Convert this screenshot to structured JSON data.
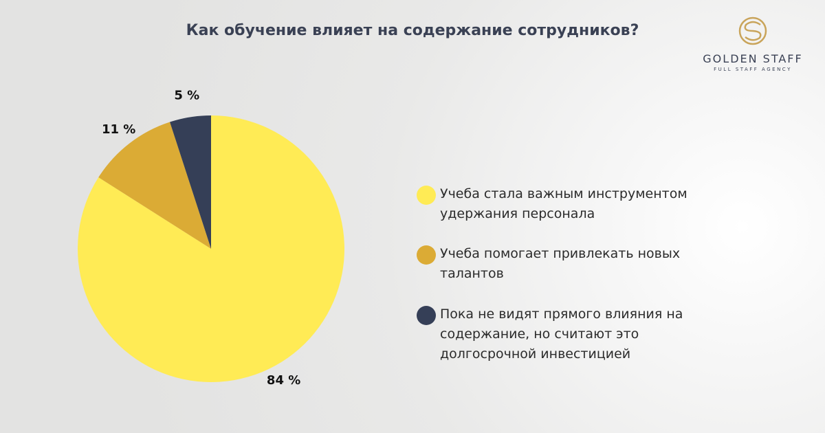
{
  "chart_data": {
    "type": "pie",
    "title": "Как обучение влияет на содержание сотрудников?",
    "categories": [
      "Учеба стала важным инструментом удержания персонала",
      "Учеба помогает привлекать новых талантов",
      "Пока не видят прямого влияния на содержание, но считают это долгосрочной инвестицией"
    ],
    "values": [
      84,
      11,
      5
    ],
    "value_labels": [
      "84 %",
      "11 %",
      "5 %"
    ],
    "colors": [
      "#ffeb55",
      "#dbab35",
      "#353f57"
    ]
  },
  "logo": {
    "name": "GOLDEN STAFF",
    "tagline": "FULL STAFF AGENCY"
  }
}
